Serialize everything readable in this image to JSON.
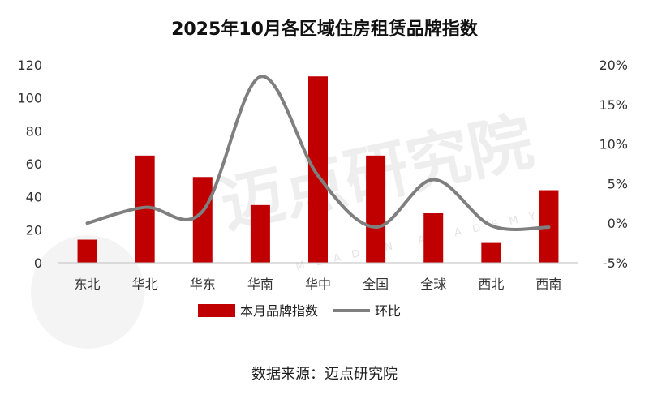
{
  "chart_data": {
    "type": "bar",
    "title": "2025年10月各区域住房租赁品牌指数",
    "categories": [
      "东北",
      "华北",
      "华东",
      "华南",
      "华中",
      "全国",
      "全球",
      "西北",
      "西南"
    ],
    "series": [
      {
        "name": "本月品牌指数",
        "type": "bar",
        "axis": "left",
        "color": "#c00000",
        "values": [
          14,
          65,
          52,
          35,
          113,
          65,
          30,
          12,
          44
        ]
      },
      {
        "name": "环比",
        "type": "line",
        "axis": "right",
        "color": "#7f7f7f",
        "smooth": true,
        "values": [
          0.0,
          2.0,
          1.5,
          18.5,
          6.0,
          -0.5,
          5.5,
          -0.3,
          -0.5
        ]
      }
    ],
    "y_left": {
      "min": 0,
      "max": 120,
      "ticks": [
        "0",
        "20",
        "40",
        "60",
        "80",
        "100",
        "120"
      ]
    },
    "y_right": {
      "min": -5,
      "max": 20,
      "ticks": [
        "-5%",
        "0%",
        "5%",
        "10%",
        "15%",
        "20%"
      ]
    },
    "grid": false,
    "legend_position": "bottom"
  },
  "source": "数据来源：迈点研究院",
  "watermark": {
    "text_cn": "迈点研究院",
    "text_en": "MEADIN ACADEMY"
  }
}
